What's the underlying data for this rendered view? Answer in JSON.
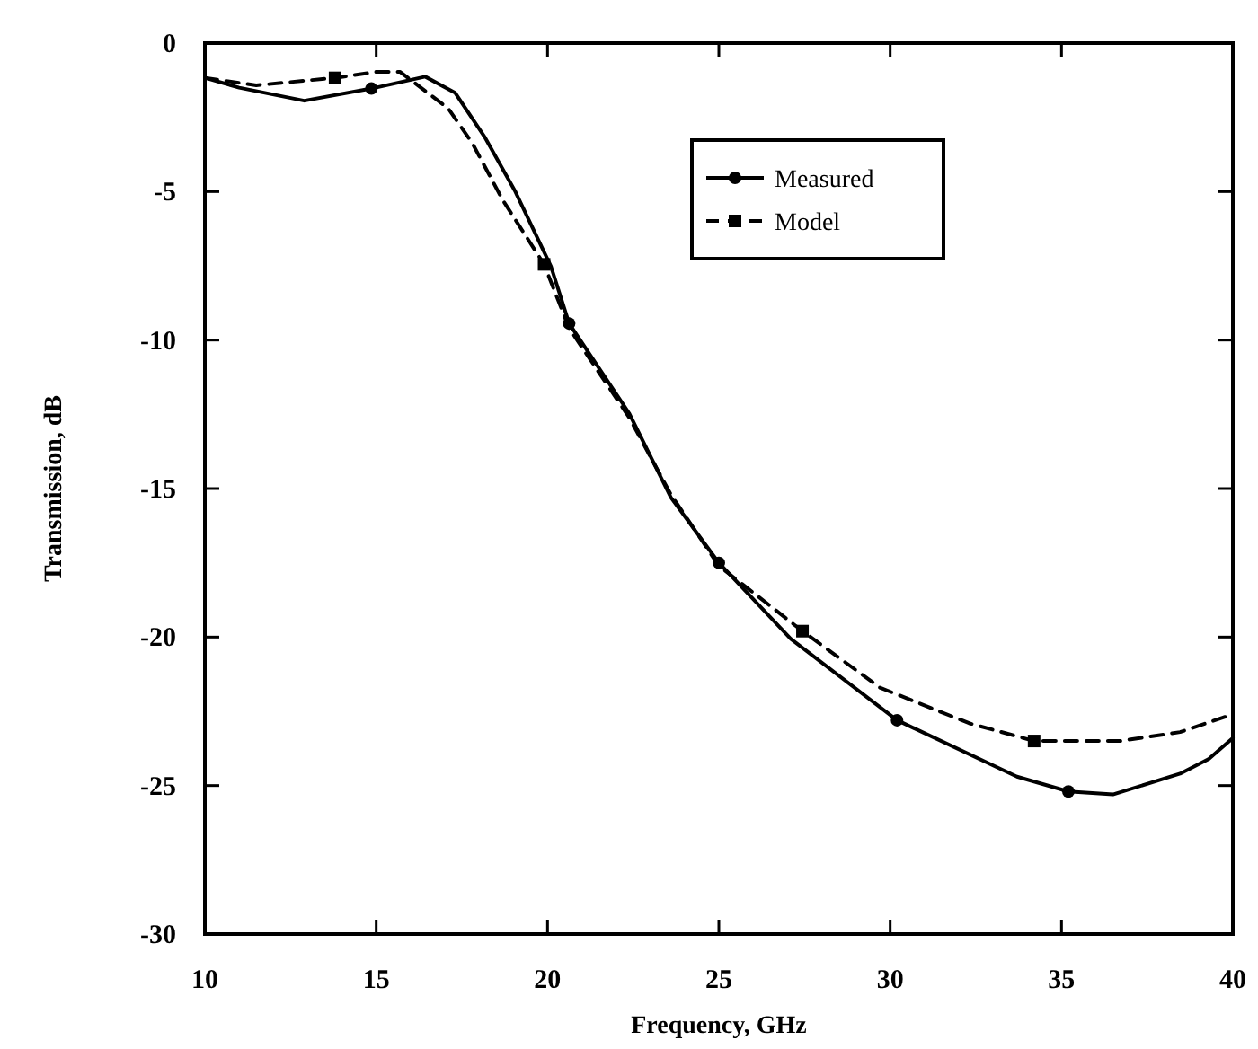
{
  "chart_data": {
    "type": "line",
    "xlabel": "Frequency, GHz",
    "ylabel": "Transmission, dB",
    "xlim": [
      10,
      40
    ],
    "ylim": [
      -30,
      0
    ],
    "xticks": [
      10,
      15,
      20,
      25,
      30,
      35,
      40
    ],
    "yticks": [
      -30,
      -25,
      -20,
      -15,
      -10,
      -5,
      0
    ],
    "grid": false,
    "legend": "top right",
    "series": [
      {
        "name": "Measured",
        "color": "#000000",
        "line_style": "solid",
        "x": [
          10,
          11,
          12.9,
          14.86,
          16.43,
          17.3,
          18.18,
          19.06,
          20.1,
          20.63,
          21.33,
          22.38,
          23.6,
          25,
          27.1,
          30.2,
          33.7,
          35.2,
          36.5,
          38.46,
          39.3,
          40
        ],
        "values": [
          -1.17,
          -1.5,
          -1.94,
          -1.53,
          -1.13,
          -1.67,
          -3.19,
          -5.0,
          -7.52,
          -9.44,
          -10.65,
          -12.46,
          -15.3,
          -17.5,
          -20.06,
          -22.8,
          -24.7,
          -25.2,
          -25.3,
          -24.6,
          -24.1,
          -23.4
        ]
      },
      {
        "name": "Model",
        "color": "#000000",
        "line_style": "dashed",
        "x": [
          10,
          11.5,
          13.8,
          15,
          15.7,
          17.1,
          17.8,
          18.7,
          19.9,
          20.63,
          21.33,
          22.38,
          23.6,
          25,
          27.44,
          29.7,
          32.3,
          34.2,
          36.7,
          38.46,
          40
        ],
        "values": [
          -1.17,
          -1.42,
          -1.17,
          -0.97,
          -0.97,
          -2.2,
          -3.36,
          -5.3,
          -7.45,
          -9.6,
          -10.8,
          -12.6,
          -15.2,
          -17.6,
          -19.8,
          -21.7,
          -22.9,
          -23.5,
          -23.5,
          -23.2,
          -22.6
        ]
      },
      {
        "type": "scatter",
        "color": "#000000",
        "marker": "circle",
        "x": [
          14.86,
          20.63,
          25,
          30.2,
          35.2
        ],
        "values": [
          -1.53,
          -9.44,
          -17.5,
          -22.8,
          -25.2
        ]
      },
      {
        "type": "scatter",
        "color": "#000000",
        "marker": "square",
        "x": [
          13.8,
          19.9,
          27.44,
          34.2
        ],
        "values": [
          -1.17,
          -7.45,
          -19.8,
          -23.5
        ]
      }
    ]
  }
}
